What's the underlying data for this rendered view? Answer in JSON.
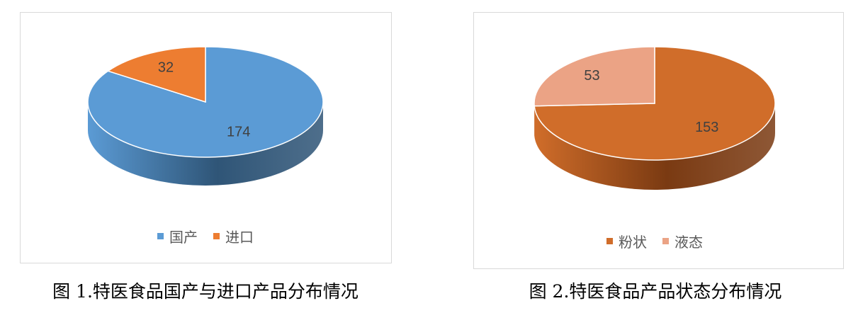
{
  "chart_data": [
    {
      "type": "pie",
      "style": "3d",
      "categories": [
        "国产",
        "进口"
      ],
      "values": [
        174,
        32
      ],
      "colors": [
        "#5b9bd5",
        "#ed7d31"
      ],
      "side_colors": [
        "#2f5577",
        "#a9541e"
      ],
      "data_labels": [
        "174",
        "32"
      ],
      "legend": "bottom",
      "caption": "图 1.特医食品国产与进口产品分布情况"
    },
    {
      "type": "pie",
      "style": "3d",
      "categories": [
        "粉状",
        "液态"
      ],
      "values": [
        153,
        53
      ],
      "colors": [
        "#d06d2a",
        "#eba385"
      ],
      "side_colors": [
        "#7a3a12",
        "#b57458"
      ],
      "data_labels": [
        "153",
        "53"
      ],
      "legend": "bottom",
      "caption": "图 2.特医食品产品状态分布情况"
    }
  ]
}
